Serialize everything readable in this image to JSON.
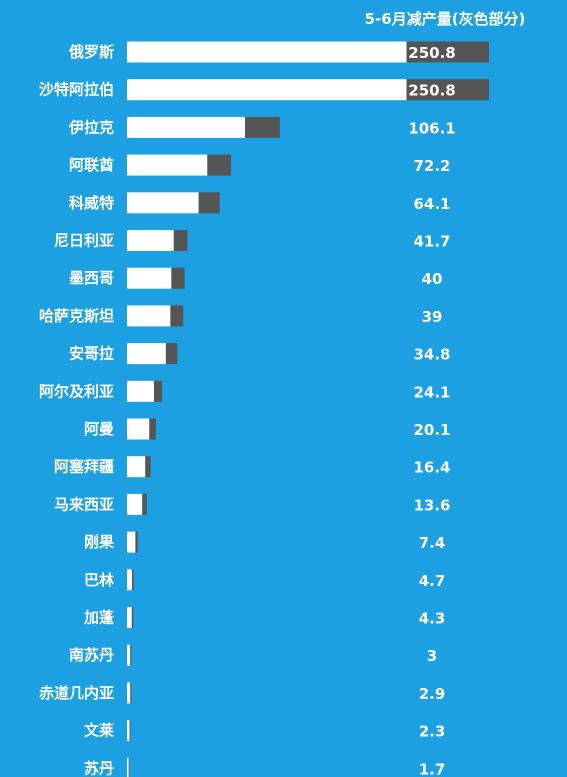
{
  "chart_data": {
    "type": "bar",
    "orientation": "horizontal",
    "stacked": true,
    "header": "5-6月减产量(灰色部分)",
    "categories": [
      "俄罗斯",
      "沙特阿拉伯",
      "伊拉克",
      "阿联酋",
      "科威特",
      "尼日利亚",
      "墨西哥",
      "哈萨克斯坦",
      "安哥拉",
      "阿尔及利亚",
      "阿曼",
      "阿塞拜疆",
      "马来西亚",
      "刚果",
      "巴林",
      "加蓬",
      "南苏丹",
      "赤道几内亚",
      "文莱",
      "苏丹"
    ],
    "series": [
      {
        "values": [
          850.0,
          850.0,
          358.9,
          244.3,
          217.9,
          142.3,
          135.0,
          132.0,
          118.2,
          82.1,
          67.9,
          55.6,
          46.4,
          25.6,
          15.3,
          14.7,
          10.0,
          10.1,
          7.7,
          5.3
        ],
        "color": "#ffffff"
      },
      {
        "values": [
          250.8,
          250.8,
          106.1,
          72.2,
          64.1,
          41.7,
          40,
          39,
          34.8,
          24.1,
          20.1,
          16.4,
          13.6,
          7.4,
          4.7,
          4.3,
          3,
          2.9,
          2.3,
          1.7
        ],
        "color": "#555555"
      }
    ],
    "value_labels": [
      "250.8",
      "250.8",
      "106.1",
      "72.2",
      "64.1",
      "41.7",
      "40",
      "39",
      "34.8",
      "24.1",
      "20.1",
      "16.4",
      "13.6",
      "7.4",
      "4.7",
      "4.3",
      "3",
      "2.9",
      "2.3",
      "1.7"
    ],
    "xlim": [
      0,
      1100.8
    ],
    "grid": false,
    "colors": {
      "background": "#1ca0e2",
      "text": "#ffffff"
    }
  }
}
